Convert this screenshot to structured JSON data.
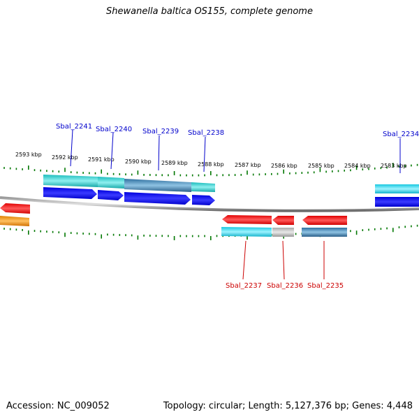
{
  "title": "Shewanella baltica OS155, complete genome",
  "accession_label": "Accession: NC_009052",
  "summary_label": "Topology: circular; Length: 5,127,376 bp; Genes: 4,448",
  "colors": {
    "forward_label": "#0000cc",
    "reverse_label": "#cc0000",
    "backbone": "#808080",
    "ticks": "#007700"
  },
  "position_labels": [
    "2593 kbp",
    "2592 kbp",
    "2591 kbp",
    "2590 kbp",
    "2589 kbp",
    "2588 kbp",
    "2587 kbp",
    "2586 kbp",
    "2585 kbp",
    "2584 kbp",
    "2583 kbp"
  ],
  "forward_genes": [
    "Sbal_2241",
    "Sbal_2240",
    "Sbal_2239",
    "Sbal_2238",
    "Sbal_2234"
  ],
  "reverse_genes": [
    "Sbal_2237",
    "Sbal_2236",
    "Sbal_2235"
  ]
}
